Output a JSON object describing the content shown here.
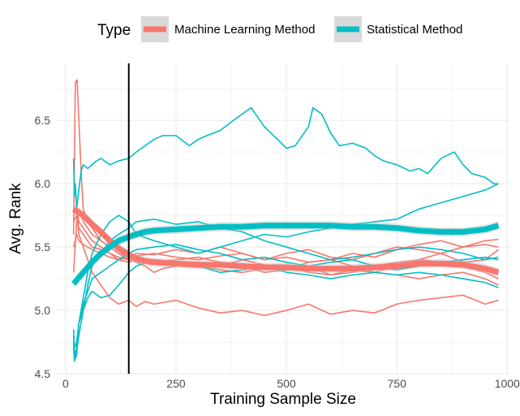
{
  "chart_data": {
    "type": "line",
    "title": "",
    "xlabel": "Training Sample Size",
    "ylabel": "Avg. Rank",
    "xlim": [
      -20,
      1005
    ],
    "ylim": [
      4.5,
      6.95
    ],
    "xticks": [
      0,
      250,
      500,
      750,
      1000
    ],
    "xtick_labels": [
      "0",
      "250",
      "500",
      "750",
      "1000"
    ],
    "yticks": [
      4.5,
      5.0,
      5.5,
      6.0,
      6.5
    ],
    "ytick_labels": [
      "4.5",
      "5.0",
      "5.5",
      "6.0",
      "6.5"
    ],
    "grid": true,
    "vline_x": 143,
    "legend": {
      "title": "Type",
      "placement": "top",
      "entries": [
        {
          "name": "Machine Learning Method",
          "color": "#F8766D"
        },
        {
          "name": "Statistical Method",
          "color": "#00BFC4"
        }
      ]
    },
    "colors": {
      "Machine Learning Method": "#F8766D",
      "Statistical Method": "#00BFC4",
      "ribbon": "#BEBEBE"
    },
    "series": [
      {
        "group": "Machine Learning Method",
        "x": [
          18,
          22,
          26,
          30,
          35,
          40,
          50,
          60,
          70,
          80,
          100,
          120,
          143,
          160,
          180,
          200,
          220,
          250,
          300,
          350,
          400,
          450,
          500,
          550,
          600,
          650,
          700,
          750,
          800,
          850,
          900,
          950,
          980
        ],
        "y": [
          5.6,
          6.8,
          6.82,
          6.5,
          6.1,
          5.8,
          5.7,
          5.65,
          5.6,
          5.55,
          5.5,
          5.45,
          5.4,
          5.38,
          5.35,
          5.3,
          5.33,
          5.35,
          5.38,
          5.35,
          5.4,
          5.36,
          5.32,
          5.38,
          5.4,
          5.35,
          5.3,
          5.35,
          5.4,
          5.45,
          5.38,
          5.4,
          5.48
        ]
      },
      {
        "group": "Machine Learning Method",
        "x": [
          18,
          25,
          30,
          40,
          50,
          60,
          70,
          80,
          100,
          120,
          143,
          160,
          180,
          200,
          250,
          300,
          350,
          400,
          450,
          500,
          550,
          600,
          650,
          700,
          750,
          800,
          850,
          900,
          950,
          980
        ],
        "y": [
          5.8,
          5.78,
          5.6,
          5.5,
          5.4,
          5.3,
          5.25,
          5.2,
          5.1,
          5.05,
          5.08,
          5.03,
          5.07,
          5.05,
          5.08,
          5.02,
          4.98,
          5.0,
          4.96,
          5.0,
          5.05,
          4.97,
          5.0,
          4.98,
          5.05,
          5.08,
          5.1,
          5.12,
          5.05,
          5.08
        ]
      },
      {
        "group": "Machine Learning Method",
        "x": [
          18,
          25,
          30,
          40,
          50,
          60,
          80,
          100,
          120,
          143,
          160,
          200,
          250,
          300,
          350,
          400,
          450,
          500,
          550,
          600,
          650,
          700,
          750,
          800,
          850,
          900,
          950,
          980
        ],
        "y": [
          5.3,
          5.7,
          5.8,
          5.7,
          5.65,
          5.6,
          5.55,
          5.5,
          5.45,
          5.42,
          5.4,
          5.38,
          5.4,
          5.42,
          5.38,
          5.35,
          5.3,
          5.32,
          5.35,
          5.28,
          5.3,
          5.35,
          5.38,
          5.4,
          5.38,
          5.35,
          5.3,
          5.25
        ]
      },
      {
        "group": "Machine Learning Method",
        "x": [
          18,
          25,
          30,
          40,
          50,
          60,
          80,
          100,
          120,
          143,
          160,
          200,
          250,
          300,
          350,
          400,
          450,
          500,
          550,
          600,
          650,
          700,
          750,
          800,
          850,
          900,
          950,
          980
        ],
        "y": [
          5.75,
          5.8,
          5.7,
          5.65,
          5.6,
          5.55,
          5.5,
          5.45,
          5.4,
          5.42,
          5.45,
          5.44,
          5.48,
          5.45,
          5.5,
          5.45,
          5.4,
          5.42,
          5.38,
          5.4,
          5.45,
          5.42,
          5.48,
          5.52,
          5.55,
          5.5,
          5.55,
          5.56
        ]
      },
      {
        "group": "Machine Learning Method",
        "x": [
          18,
          25,
          30,
          40,
          50,
          60,
          80,
          100,
          120,
          143,
          160,
          200,
          250,
          300,
          350,
          400,
          450,
          500,
          550,
          600,
          650,
          700,
          750,
          800,
          850,
          900,
          950,
          980
        ],
        "y": [
          5.7,
          5.75,
          5.65,
          5.6,
          5.55,
          5.5,
          5.48,
          5.45,
          5.42,
          5.4,
          5.43,
          5.45,
          5.42,
          5.4,
          5.43,
          5.45,
          5.4,
          5.45,
          5.48,
          5.42,
          5.4,
          5.45,
          5.5,
          5.48,
          5.45,
          5.5,
          5.52,
          5.5
        ]
      },
      {
        "group": "Machine Learning Method",
        "x": [
          18,
          25,
          30,
          40,
          50,
          60,
          80,
          100,
          120,
          143,
          160,
          200,
          250,
          300,
          350,
          400,
          450,
          500,
          550,
          600,
          650,
          700,
          750,
          800,
          850,
          900,
          950,
          980
        ],
        "y": [
          5.5,
          5.6,
          5.55,
          5.52,
          5.5,
          5.48,
          5.45,
          5.42,
          5.4,
          5.38,
          5.4,
          5.38,
          5.36,
          5.35,
          5.32,
          5.3,
          5.33,
          5.35,
          5.3,
          5.28,
          5.32,
          5.3,
          5.28,
          5.25,
          5.28,
          5.3,
          5.25,
          5.2
        ]
      },
      {
        "group": "Statistical Method",
        "x": [
          18,
          20,
          22,
          25,
          28,
          30,
          35,
          40,
          50,
          60,
          70,
          80,
          100,
          120,
          143,
          160,
          180,
          200,
          220,
          250,
          280,
          300,
          320,
          350,
          380,
          400,
          420,
          450,
          480,
          500,
          520,
          550,
          560,
          580,
          600,
          620,
          650,
          680,
          700,
          720,
          750,
          780,
          800,
          820,
          850,
          880,
          900,
          920,
          950,
          970,
          980
        ],
        "y": [
          6.2,
          5.9,
          6.0,
          5.8,
          5.9,
          5.95,
          6.1,
          6.15,
          6.12,
          6.15,
          6.18,
          6.2,
          6.15,
          6.18,
          6.2,
          6.25,
          6.3,
          6.35,
          6.38,
          6.38,
          6.3,
          6.35,
          6.38,
          6.42,
          6.5,
          6.55,
          6.6,
          6.45,
          6.35,
          6.28,
          6.3,
          6.45,
          6.6,
          6.55,
          6.4,
          6.3,
          6.32,
          6.28,
          6.22,
          6.18,
          6.15,
          6.1,
          6.12,
          6.08,
          6.2,
          6.25,
          6.15,
          6.08,
          6.05,
          6.0,
          6.0
        ]
      },
      {
        "group": "Statistical Method",
        "x": [
          18,
          20,
          25,
          30,
          40,
          50,
          60,
          80,
          100,
          120,
          143,
          160,
          200,
          250,
          300,
          350,
          400,
          450,
          500,
          550,
          600,
          650,
          700,
          750,
          800,
          850,
          900,
          950,
          980
        ],
        "y": [
          4.75,
          4.6,
          4.65,
          4.9,
          5.1,
          5.3,
          5.45,
          5.6,
          5.7,
          5.75,
          5.7,
          5.6,
          5.55,
          5.5,
          5.45,
          5.5,
          5.55,
          5.6,
          5.58,
          5.62,
          5.65,
          5.68,
          5.7,
          5.72,
          5.8,
          5.85,
          5.9,
          5.95,
          6.0
        ]
      },
      {
        "group": "Statistical Method",
        "x": [
          18,
          20,
          25,
          30,
          40,
          50,
          60,
          80,
          100,
          120,
          143,
          160,
          200,
          250,
          300,
          350,
          400,
          450,
          500,
          550,
          600,
          650,
          700,
          750,
          800,
          850,
          900,
          950,
          980
        ],
        "y": [
          4.8,
          4.65,
          4.7,
          4.9,
          5.0,
          5.1,
          5.15,
          5.1,
          5.12,
          5.2,
          5.3,
          5.35,
          5.4,
          5.38,
          5.35,
          5.3,
          5.32,
          5.35,
          5.3,
          5.28,
          5.25,
          5.28,
          5.3,
          5.28,
          5.3,
          5.28,
          5.25,
          5.22,
          5.18
        ]
      },
      {
        "group": "Statistical Method",
        "x": [
          18,
          20,
          25,
          30,
          40,
          50,
          60,
          80,
          100,
          120,
          143,
          160,
          200,
          250,
          300,
          350,
          400,
          450,
          500,
          550,
          600,
          650,
          700,
          750,
          800,
          850,
          900,
          950,
          980
        ],
        "y": [
          4.7,
          4.62,
          4.68,
          4.8,
          5.0,
          5.2,
          5.35,
          5.45,
          5.55,
          5.6,
          5.65,
          5.7,
          5.72,
          5.68,
          5.7,
          5.65,
          5.62,
          5.55,
          5.5,
          5.45,
          5.4,
          5.42,
          5.45,
          5.48,
          5.5,
          5.48,
          5.45,
          5.4,
          5.42
        ]
      },
      {
        "group": "Statistical Method",
        "x": [
          18,
          20,
          25,
          30,
          40,
          50,
          60,
          80,
          100,
          120,
          143,
          160,
          200,
          250,
          300,
          350,
          400,
          450,
          500,
          550,
          600,
          650,
          700,
          750,
          800,
          850,
          900,
          950,
          980
        ],
        "y": [
          4.85,
          4.7,
          4.75,
          4.9,
          5.05,
          5.15,
          5.25,
          5.3,
          5.35,
          5.4,
          5.45,
          5.48,
          5.5,
          5.52,
          5.48,
          5.45,
          5.4,
          5.42,
          5.38,
          5.35,
          5.38,
          5.4,
          5.35,
          5.32,
          5.35,
          5.38,
          5.4,
          5.42,
          5.4
        ]
      }
    ],
    "smooth_series": [
      {
        "group": "Machine Learning Method",
        "x": [
          18,
          40,
          60,
          80,
          100,
          120,
          143,
          160,
          180,
          200,
          250,
          300,
          350,
          400,
          450,
          500,
          550,
          600,
          650,
          700,
          750,
          800,
          850,
          900,
          950,
          980
        ],
        "y": [
          5.8,
          5.75,
          5.68,
          5.62,
          5.55,
          5.49,
          5.44,
          5.41,
          5.39,
          5.38,
          5.37,
          5.36,
          5.36,
          5.35,
          5.34,
          5.34,
          5.33,
          5.33,
          5.33,
          5.34,
          5.35,
          5.37,
          5.37,
          5.36,
          5.33,
          5.3
        ]
      },
      {
        "group": "Statistical Method",
        "x": [
          18,
          40,
          60,
          80,
          100,
          120,
          143,
          160,
          180,
          200,
          250,
          300,
          350,
          400,
          450,
          500,
          550,
          600,
          650,
          700,
          750,
          800,
          850,
          900,
          950,
          980
        ],
        "y": [
          5.21,
          5.3,
          5.38,
          5.45,
          5.5,
          5.55,
          5.58,
          5.6,
          5.62,
          5.63,
          5.64,
          5.65,
          5.66,
          5.66,
          5.67,
          5.67,
          5.67,
          5.67,
          5.66,
          5.66,
          5.65,
          5.63,
          5.62,
          5.62,
          5.64,
          5.67
        ]
      }
    ]
  }
}
